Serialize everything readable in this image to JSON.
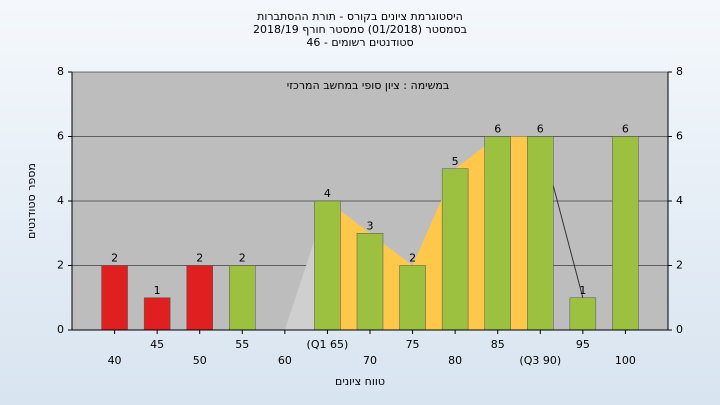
{
  "chart_data": {
    "type": "bar",
    "title": "היסטוגרמת ציונים בקורס - תורת ההסתברות",
    "subtitle": "בסמסטר (01/2018) סמסטר חורף 2018/19",
    "subtitle2": "סטודנטים רשומים - 46",
    "annotation": "במשימה : ציון סופי במחשב המרכזי",
    "x_label": "טווח ציונים",
    "y_label": "מספר סטודנטים",
    "categories": [
      "40",
      "45",
      "50",
      "55",
      "60",
      "(Q1 65)",
      "70",
      "75",
      "80",
      "85",
      "(Q3 90)",
      "95",
      "100"
    ],
    "values": [
      2,
      1,
      2,
      2,
      0,
      4,
      3,
      2,
      5,
      6,
      6,
      1,
      6
    ],
    "colors": [
      "#e02020",
      "#e02020",
      "#e02020",
      "#9cc040",
      "#9cc040",
      "#9cc040",
      "#9cc040",
      "#9cc040",
      "#9cc040",
      "#9cc040",
      "#9cc040",
      "#9cc040",
      "#9cc040"
    ],
    "ylim": [
      0,
      8
    ],
    "yticks": [
      0,
      2,
      4,
      6,
      8
    ],
    "grid": true
  }
}
